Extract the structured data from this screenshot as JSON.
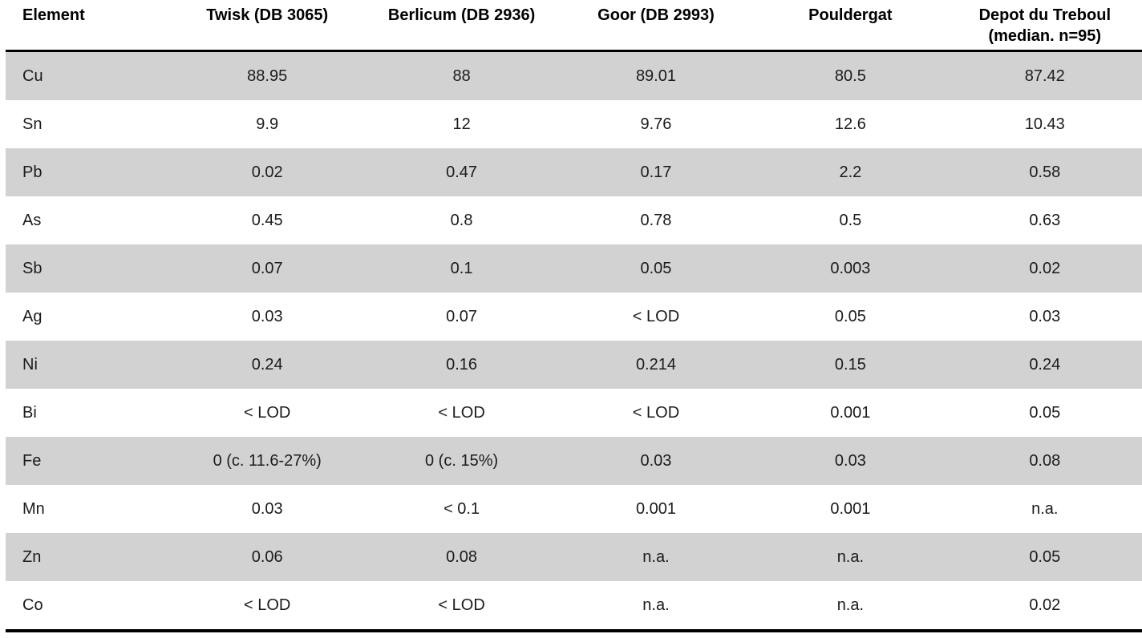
{
  "table": {
    "columns": [
      {
        "label": "Element",
        "align": "left"
      },
      {
        "label": "Twisk (DB 3065)",
        "align": "center"
      },
      {
        "label": "Berlicum (DB 2936)",
        "align": "center"
      },
      {
        "label": "Goor (DB 2993)",
        "align": "center"
      },
      {
        "label": "Pouldergat",
        "align": "center"
      },
      {
        "label": "Depot du Treboul\n(median. n=95)",
        "align": "center"
      }
    ],
    "rows": [
      {
        "element": "Cu",
        "values": [
          "88.95",
          "88",
          "89.01",
          "80.5",
          "87.42"
        ]
      },
      {
        "element": "Sn",
        "values": [
          "9.9",
          "12",
          "9.76",
          "12.6",
          "10.43"
        ]
      },
      {
        "element": "Pb",
        "values": [
          "0.02",
          "0.47",
          "0.17",
          "2.2",
          "0.58"
        ]
      },
      {
        "element": "As",
        "values": [
          "0.45",
          "0.8",
          "0.78",
          "0.5",
          "0.63"
        ]
      },
      {
        "element": "Sb",
        "values": [
          "0.07",
          "0.1",
          "0.05",
          "0.003",
          "0.02"
        ]
      },
      {
        "element": "Ag",
        "values": [
          "0.03",
          "0.07",
          "< LOD",
          "0.05",
          "0.03"
        ]
      },
      {
        "element": "Ni",
        "values": [
          "0.24",
          "0.16",
          "0.214",
          "0.15",
          "0.24"
        ]
      },
      {
        "element": "Bi",
        "values": [
          "< LOD",
          "< LOD",
          "< LOD",
          "0.001",
          "0.05"
        ]
      },
      {
        "element": "Fe",
        "values": [
          "0 (c. 11.6-27%)",
          "0 (c. 15%)",
          "0.03",
          "0.03",
          "0.08"
        ]
      },
      {
        "element": "Mn",
        "values": [
          "0.03",
          "< 0.1",
          "0.001",
          "0.001",
          "n.a."
        ]
      },
      {
        "element": "Zn",
        "values": [
          "0.06",
          "0.08",
          "n.a.",
          "n.a.",
          "0.05"
        ]
      },
      {
        "element": "Co",
        "values": [
          "< LOD",
          "< LOD",
          "n.a.",
          "n.a.",
          "0.02"
        ]
      }
    ],
    "colors": {
      "stripe": "#d2d2d2",
      "rule": "#000000",
      "text": "#1b1b1b"
    }
  }
}
